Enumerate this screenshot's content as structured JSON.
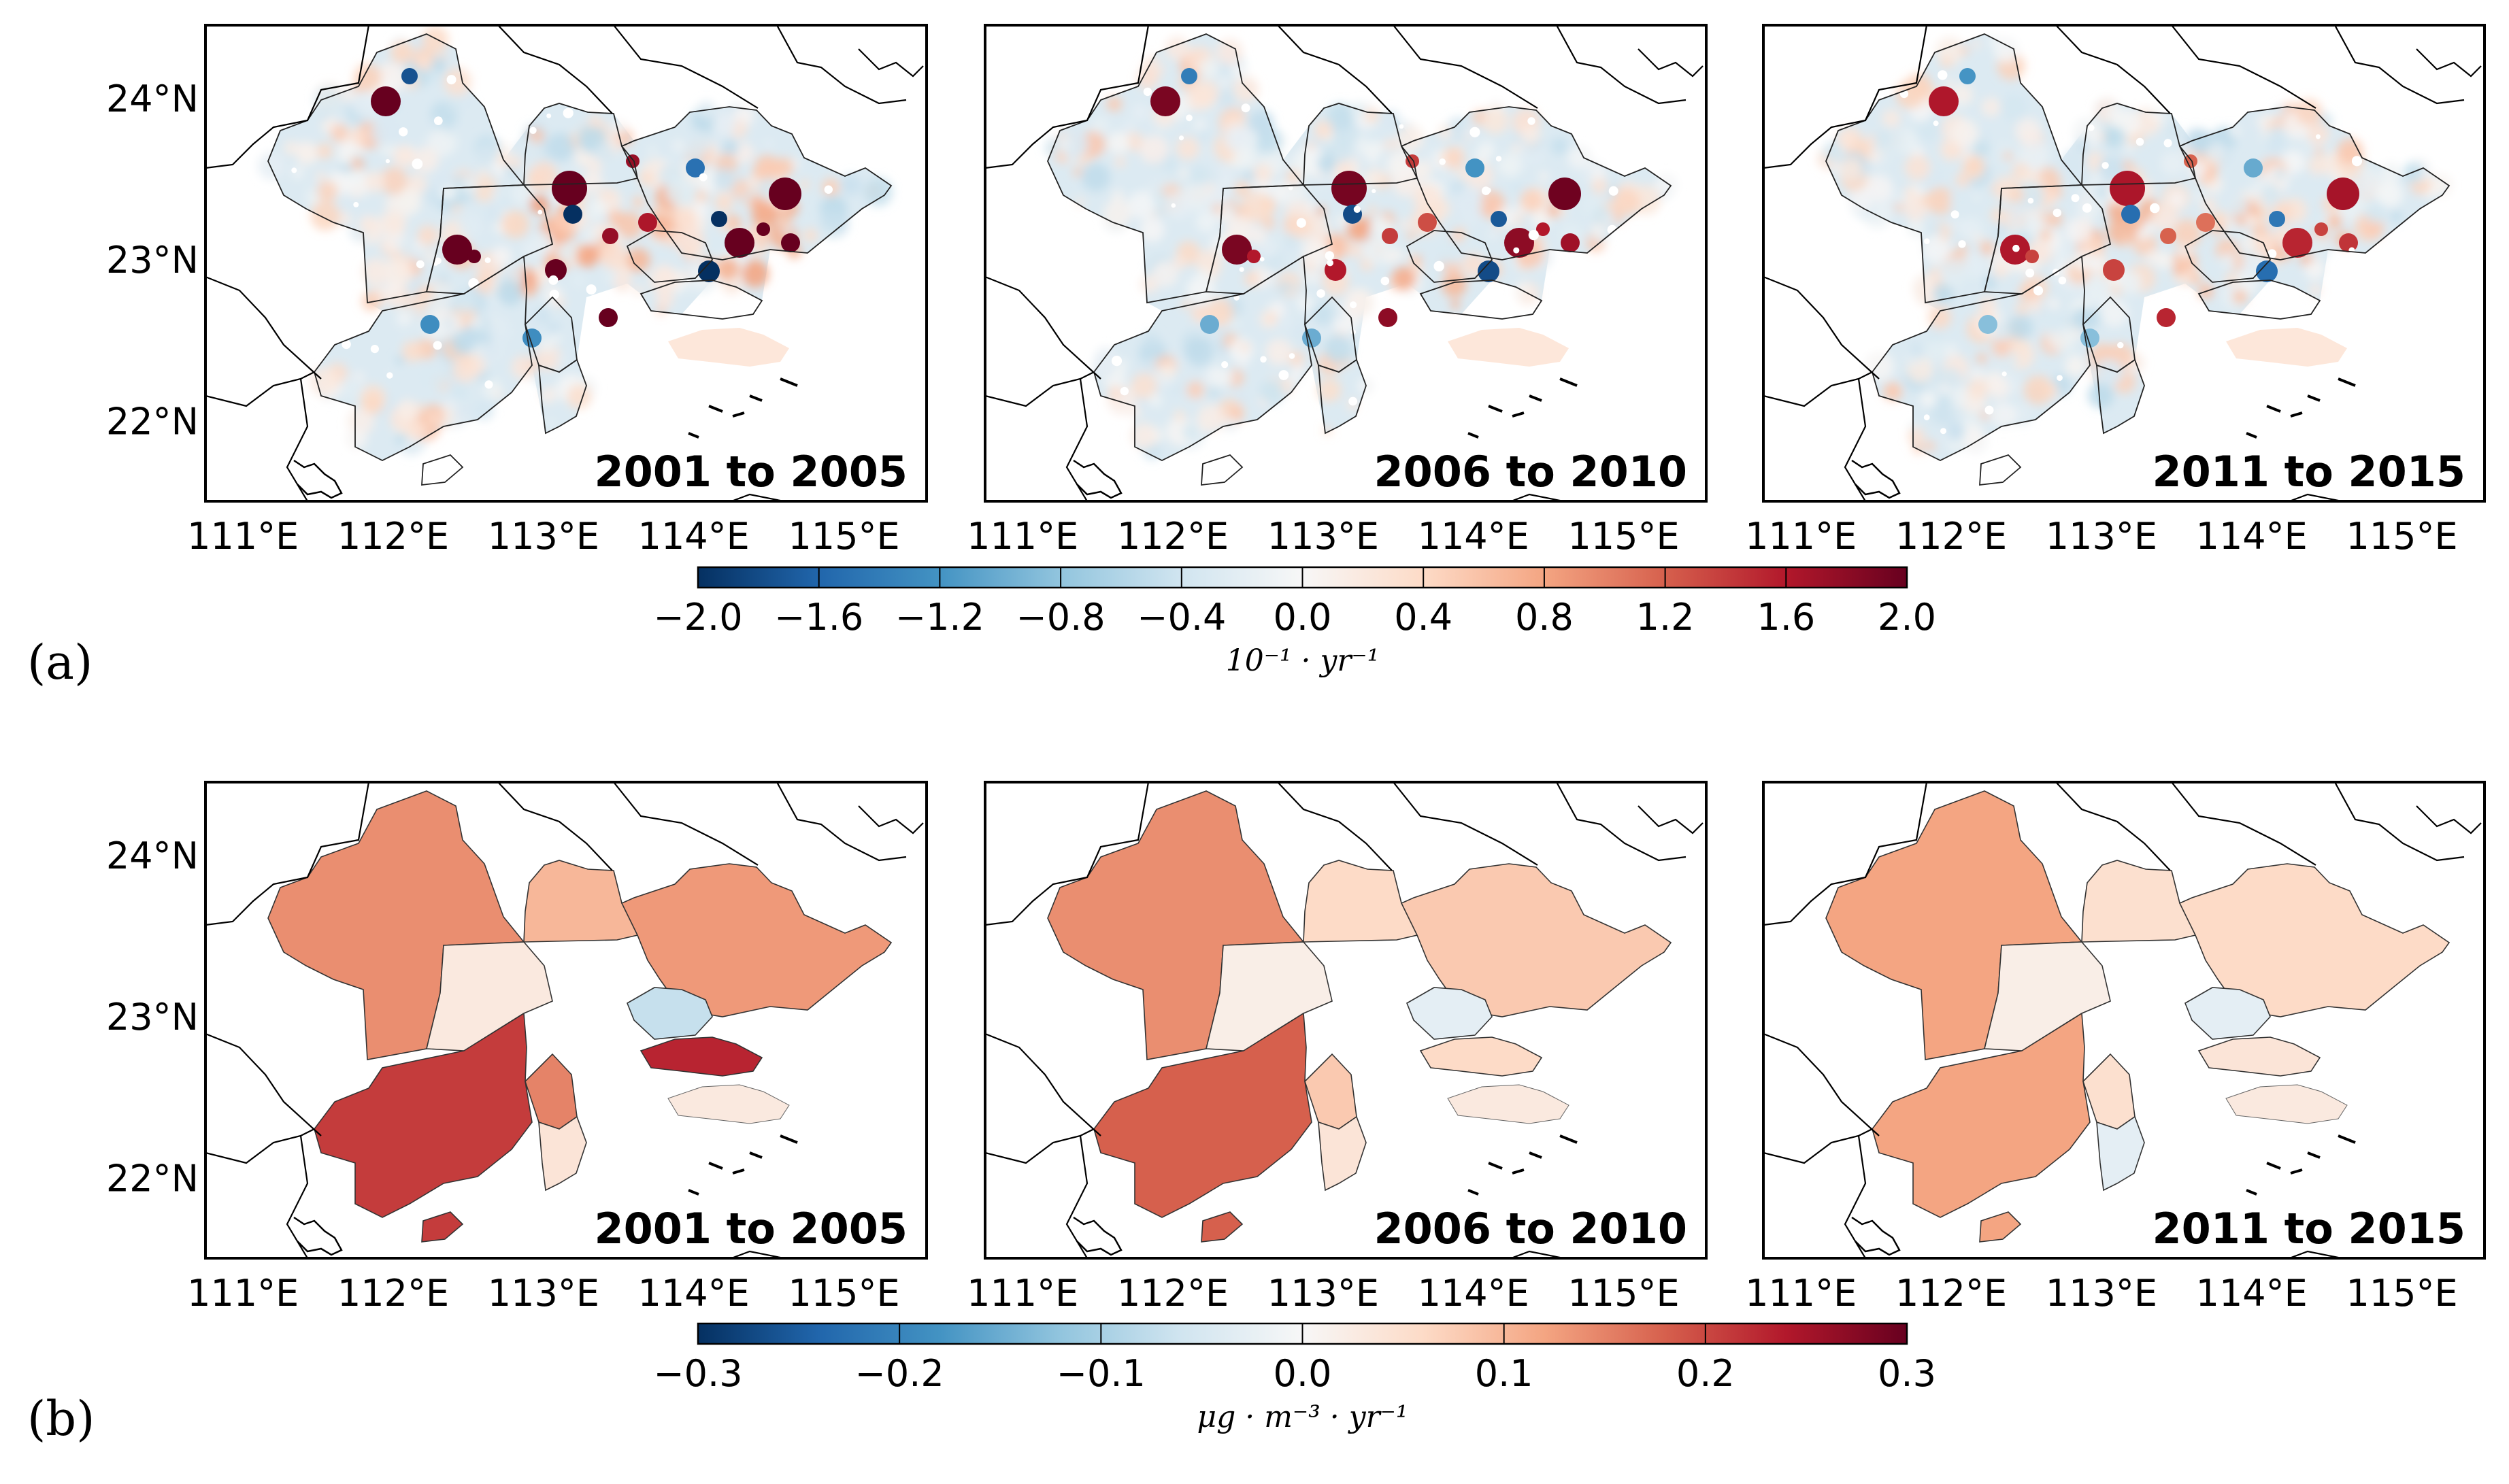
{
  "figure": {
    "rows": [
      {
        "label": "(a)",
        "kind": "pixel",
        "panels": [
          {
            "title": "2001 to 2005",
            "intensity": 1.25
          },
          {
            "title": "2006 to 2010",
            "intensity": 1.0
          },
          {
            "title": "2011 to 2015",
            "intensity": 0.85
          }
        ],
        "colorbar": {
          "min": -2.0,
          "max": 2.0,
          "ticks": [
            "−2.0",
            "−1.6",
            "−1.2",
            "−0.8",
            "−0.4",
            "0.0",
            "0.4",
            "0.8",
            "1.2",
            "1.6",
            "2.0"
          ],
          "unit": "10⁻¹ · yr⁻¹"
        }
      },
      {
        "label": "(b)",
        "kind": "region",
        "panels": [
          {
            "title": "2001 to 2005",
            "values": [
              0.14,
              0.1,
              0.13,
              0.03,
              0.21,
              0.15,
              -0.07,
              0.23,
              0.04,
              0.21
            ]
          },
          {
            "title": "2006 to 2010",
            "values": [
              0.14,
              0.06,
              0.08,
              0.02,
              0.18,
              0.08,
              -0.03,
              0.06,
              0.04,
              0.18
            ]
          },
          {
            "title": "2011 to 2015",
            "values": [
              0.12,
              0.05,
              0.06,
              0.02,
              0.12,
              0.05,
              -0.03,
              0.04,
              -0.03,
              0.12
            ]
          }
        ],
        "colorbar": {
          "min": -0.3,
          "max": 0.3,
          "ticks": [
            "−0.3",
            "−0.2",
            "−0.1",
            "0.0",
            "0.1",
            "0.2",
            "0.3"
          ],
          "unit": "μg · m⁻³ · yr⁻¹"
        }
      }
    ],
    "x_ticks": [
      "111°E",
      "112°E",
      "113°E",
      "114°E",
      "115°E"
    ],
    "y_ticks": [
      "24°N",
      "23°N",
      "22°N"
    ],
    "colormap": "RdBu_r"
  }
}
